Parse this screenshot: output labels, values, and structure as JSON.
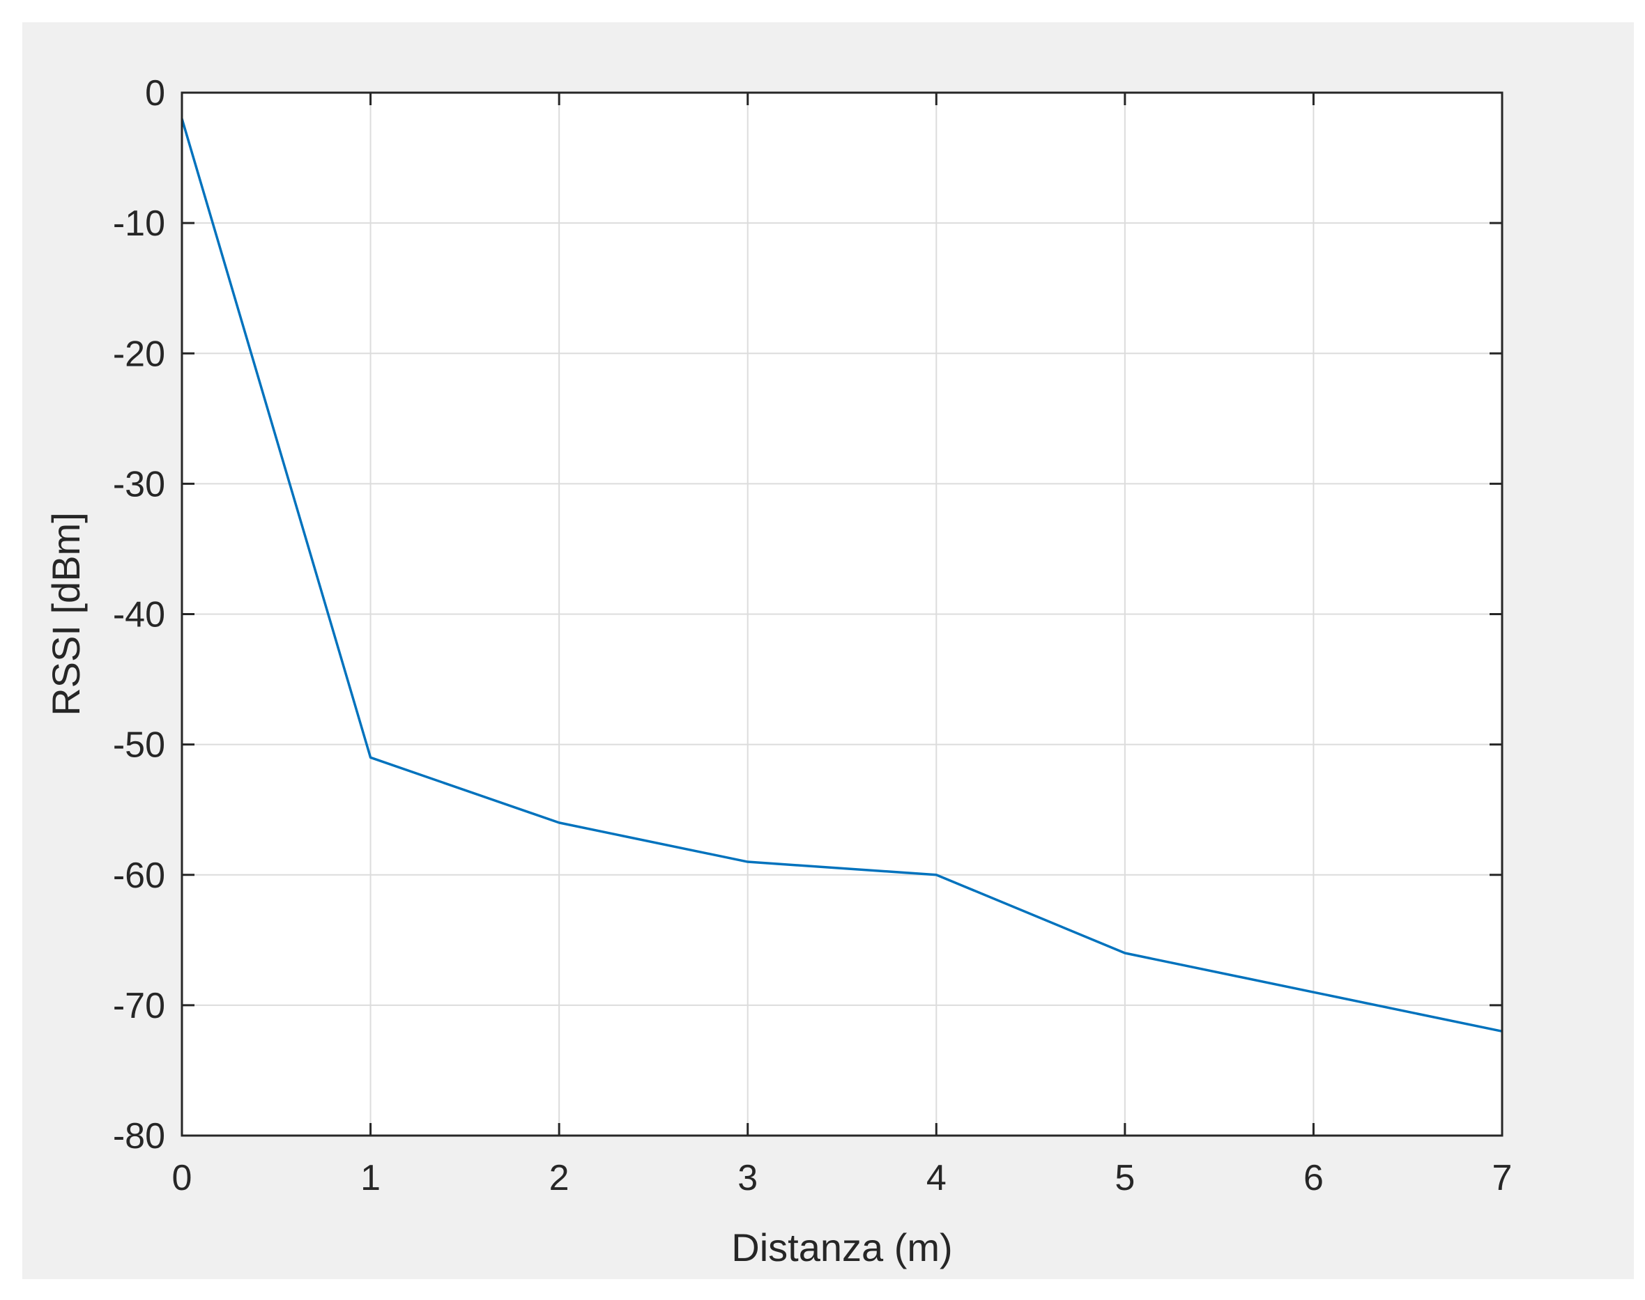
{
  "chart_data": {
    "type": "line",
    "title": "",
    "xlabel": "Distanza (m)",
    "ylabel": "RSSI [dBm]",
    "xlim": [
      0,
      7
    ],
    "ylim": [
      -80,
      0
    ],
    "xticks": [
      0,
      1,
      2,
      3,
      4,
      5,
      6,
      7
    ],
    "yticks": [
      0,
      -10,
      -20,
      -30,
      -40,
      -50,
      -60,
      -70,
      -80
    ],
    "xtick_labels": [
      "0",
      "1",
      "2",
      "3",
      "4",
      "5",
      "6",
      "7"
    ],
    "ytick_labels": [
      "0",
      "-10",
      "-20",
      "-30",
      "-40",
      "-50",
      "-60",
      "-70",
      "-80"
    ],
    "grid": true,
    "series": [
      {
        "color": "#0072bd",
        "x": [
          0,
          1,
          2,
          3,
          4,
          5,
          6,
          7
        ],
        "y": [
          -2,
          -51,
          -56,
          -59,
          -60,
          -66,
          -69,
          -72
        ]
      }
    ]
  }
}
